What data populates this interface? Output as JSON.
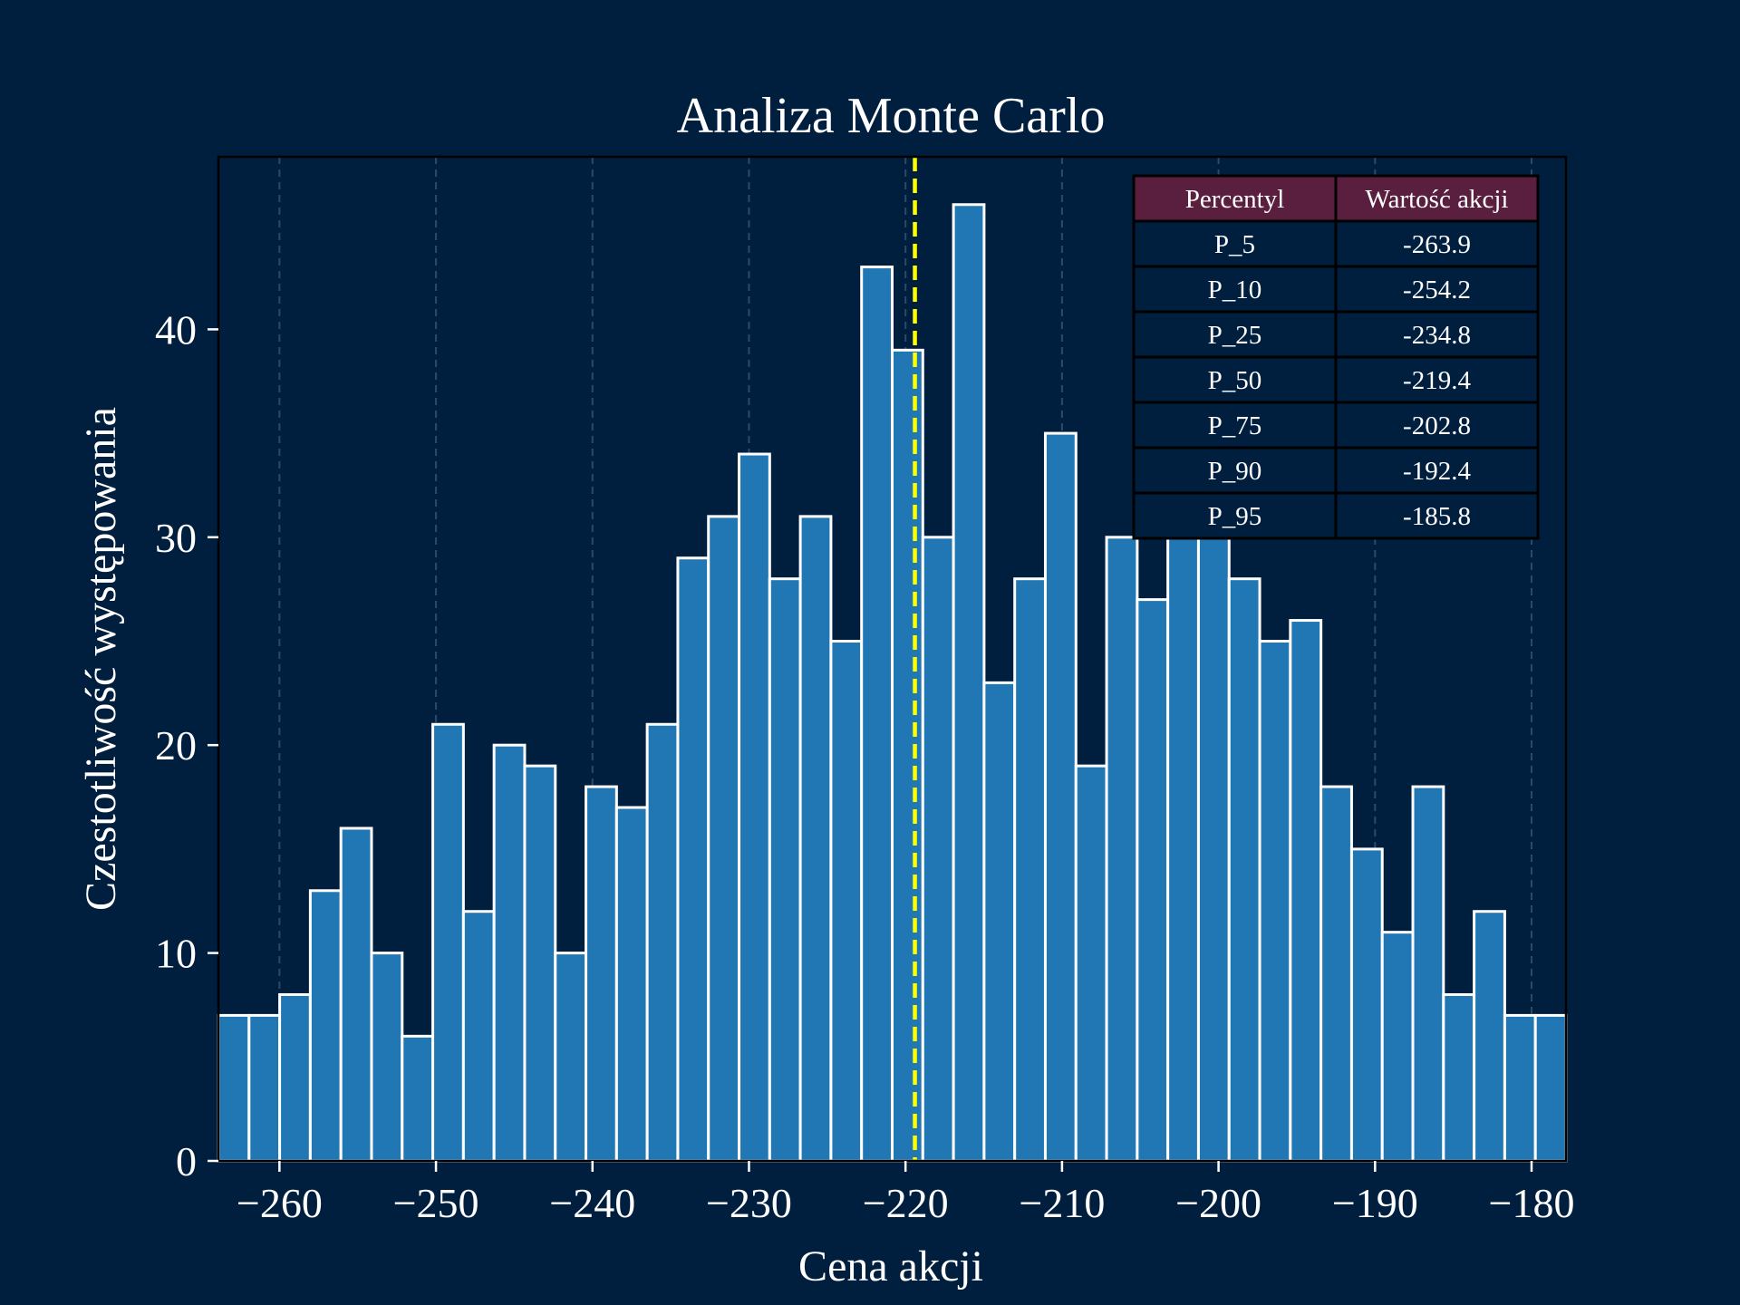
{
  "chart_data": {
    "type": "bar",
    "title": "Analiza Monte Carlo",
    "xlabel": "Cena akcji",
    "ylabel": "Czestotliwość występowania",
    "xlim": [
      -263.9,
      -177.8
    ],
    "ylim": [
      0,
      48.3
    ],
    "x_ticks": [
      -260,
      -250,
      -240,
      -230,
      -220,
      -210,
      -200,
      -190,
      -180
    ],
    "x_tick_labels": [
      "−260",
      "−250",
      "−240",
      "−230",
      "−220",
      "−210",
      "−200",
      "−190",
      "−180"
    ],
    "y_ticks": [
      0,
      10,
      20,
      30,
      40
    ],
    "y_tick_labels": [
      "0",
      "10",
      "20",
      "30",
      "40"
    ],
    "grid": "vertical dashed",
    "bin_start": -263.9,
    "bin_end": -177.8,
    "values": [
      7,
      7,
      8,
      13,
      16,
      10,
      6,
      21,
      12,
      20,
      19,
      10,
      18,
      17,
      21,
      29,
      31,
      34,
      28,
      31,
      25,
      43,
      39,
      30,
      46,
      23,
      28,
      35,
      19,
      30,
      27,
      35,
      32,
      28,
      25,
      26,
      18,
      15,
      11,
      18,
      8,
      12,
      7,
      7
    ],
    "median_line": -219.4,
    "colors": {
      "background": "#001f3f",
      "bar": "#2077b4",
      "bar_edge": "#ffffff",
      "median_line": "#ffff00",
      "table_header": "#5a1f3f",
      "grid": "#2a4a66"
    },
    "table": {
      "headers": [
        "Percentyl",
        "Wartość akcji"
      ],
      "rows": [
        [
          "P_5",
          "-263.9"
        ],
        [
          "P_10",
          "-254.2"
        ],
        [
          "P_25",
          "-234.8"
        ],
        [
          "P_50",
          "-219.4"
        ],
        [
          "P_75",
          "-202.8"
        ],
        [
          "P_90",
          "-192.4"
        ],
        [
          "P_95",
          "-185.8"
        ]
      ]
    }
  }
}
